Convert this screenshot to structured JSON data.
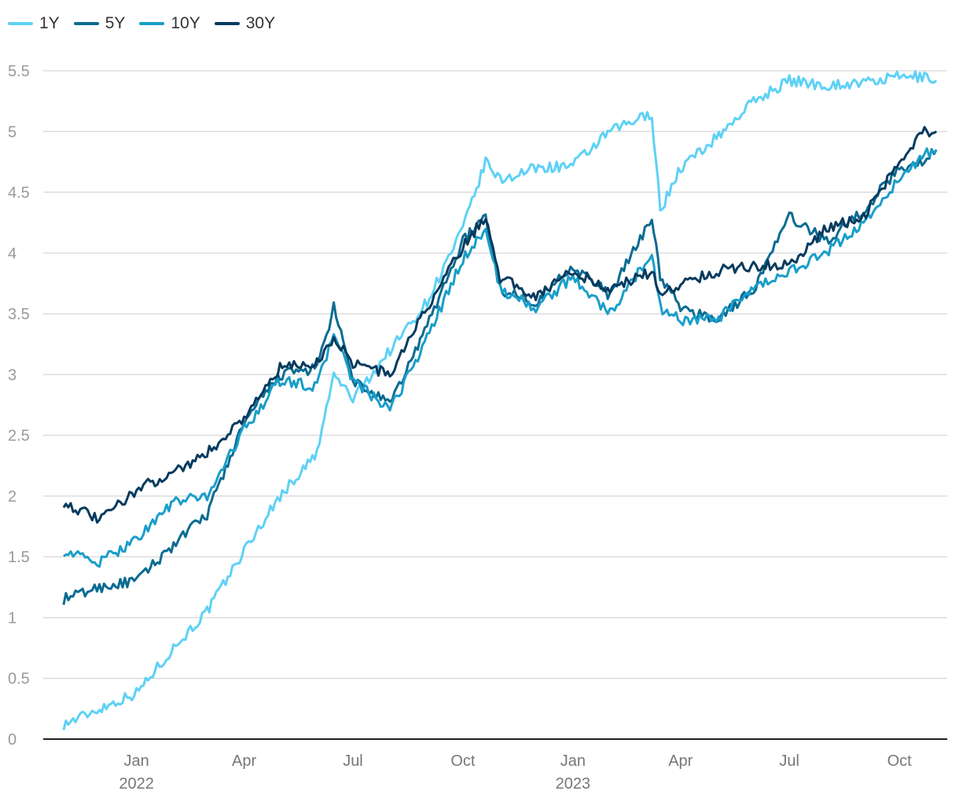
{
  "chart_data": {
    "type": "line",
    "title": "",
    "xlabel": "",
    "ylabel": "",
    "ylim": [
      0,
      5.5
    ],
    "grid": true,
    "legend_position": "top-left",
    "yticks": [
      "0",
      "0.5",
      "1",
      "1.5",
      "2",
      "2.5",
      "3",
      "3.5",
      "4",
      "4.5",
      "5",
      "5.5"
    ],
    "ytick_values": [
      0,
      0.5,
      1,
      1.5,
      2,
      2.5,
      3,
      3.5,
      4,
      4.5,
      5,
      5.5
    ],
    "xticks": [
      {
        "label": "Jan",
        "year": "2022",
        "date": "2022-01-01"
      },
      {
        "label": "Apr",
        "year": "",
        "date": "2022-04-01"
      },
      {
        "label": "Jul",
        "year": "",
        "date": "2022-07-01"
      },
      {
        "label": "Oct",
        "year": "",
        "date": "2022-10-01"
      },
      {
        "label": "Jan",
        "year": "2023",
        "date": "2023-01-01"
      },
      {
        "label": "Apr",
        "year": "",
        "date": "2023-04-01"
      },
      {
        "label": "Jul",
        "year": "",
        "date": "2023-07-01"
      },
      {
        "label": "Oct",
        "year": "",
        "date": "2023-10-01"
      }
    ],
    "xrange": [
      "2021-10-15",
      "2023-11-10"
    ],
    "dates": [
      "2021-11-01",
      "2021-12-01",
      "2022-01-01",
      "2022-02-01",
      "2022-03-01",
      "2022-04-01",
      "2022-05-01",
      "2022-06-01",
      "2022-06-15",
      "2022-07-01",
      "2022-08-01",
      "2022-09-01",
      "2022-10-01",
      "2022-10-20",
      "2022-11-01",
      "2022-12-01",
      "2023-01-01",
      "2023-02-01",
      "2023-03-08",
      "2023-03-15",
      "2023-04-01",
      "2023-05-01",
      "2023-06-01",
      "2023-07-01",
      "2023-08-01",
      "2023-09-01",
      "2023-10-01",
      "2023-10-20",
      "2023-11-01"
    ],
    "series": [
      {
        "name": "1Y",
        "color": "#5ed1f5",
        "values": [
          0.12,
          0.25,
          0.38,
          0.75,
          1.05,
          1.55,
          2.0,
          2.35,
          3.0,
          2.8,
          3.2,
          3.6,
          4.2,
          4.75,
          4.6,
          4.7,
          4.72,
          5.0,
          5.15,
          4.35,
          4.7,
          4.95,
          5.25,
          5.42,
          5.38,
          5.4,
          5.45,
          5.45,
          5.42
        ]
      },
      {
        "name": "5Y",
        "color": "#0a6b91",
        "values": [
          1.15,
          1.25,
          1.3,
          1.6,
          1.85,
          2.6,
          3.0,
          3.05,
          3.55,
          2.95,
          2.75,
          3.4,
          4.1,
          4.3,
          3.7,
          3.6,
          3.9,
          3.65,
          4.3,
          3.8,
          3.55,
          3.45,
          3.7,
          4.3,
          4.1,
          4.35,
          4.7,
          4.75,
          4.85
        ]
      },
      {
        "name": "10Y",
        "color": "#1a9ec9",
        "values": [
          1.55,
          1.45,
          1.65,
          1.95,
          2.0,
          2.55,
          2.95,
          2.9,
          3.35,
          2.95,
          2.7,
          3.3,
          3.95,
          4.2,
          3.7,
          3.55,
          3.8,
          3.5,
          4.0,
          3.55,
          3.45,
          3.45,
          3.7,
          3.85,
          4.0,
          4.25,
          4.6,
          4.8,
          4.85
        ]
      },
      {
        "name": "30Y",
        "color": "#063a5e",
        "values": [
          1.95,
          1.8,
          2.05,
          2.2,
          2.35,
          2.65,
          3.05,
          3.1,
          3.3,
          3.1,
          3.0,
          3.55,
          4.05,
          4.3,
          3.8,
          3.65,
          3.85,
          3.7,
          3.85,
          3.65,
          3.75,
          3.85,
          3.9,
          3.9,
          4.2,
          4.3,
          4.75,
          5.0,
          5.0
        ]
      }
    ]
  }
}
